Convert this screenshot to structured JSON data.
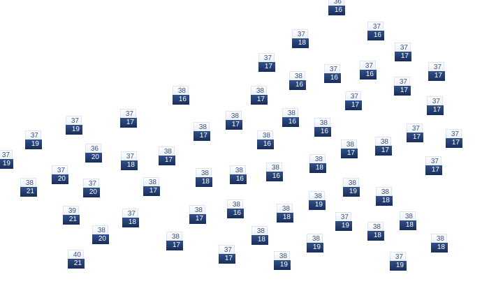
{
  "colors": {
    "label_top_bg": "#f3f6fb",
    "label_top_text": "#3b5282",
    "label_bottom_bg": "#24396a",
    "label_bottom_text": "#ffffff"
  },
  "markers": [
    {
      "high": "36",
      "low": "16"
    },
    {
      "high": "37",
      "low": "18"
    },
    {
      "high": "37",
      "low": "16"
    },
    {
      "high": "37",
      "low": "17"
    },
    {
      "high": "37",
      "low": "17"
    },
    {
      "high": "38",
      "low": "16"
    },
    {
      "high": "37",
      "low": "16"
    },
    {
      "high": "37",
      "low": "16"
    },
    {
      "high": "37",
      "low": "17"
    },
    {
      "high": "37",
      "low": "17"
    },
    {
      "high": "37",
      "low": "17"
    },
    {
      "high": "37",
      "low": "17"
    },
    {
      "high": "38",
      "low": "16"
    },
    {
      "high": "38",
      "low": "17"
    },
    {
      "high": "38",
      "low": "17"
    },
    {
      "high": "38",
      "low": "16"
    },
    {
      "high": "38",
      "low": "16"
    },
    {
      "high": "38",
      "low": "17"
    },
    {
      "high": "38",
      "low": "16"
    },
    {
      "high": "37",
      "low": "17"
    },
    {
      "high": "37",
      "low": "17"
    },
    {
      "high": "38",
      "low": "17"
    },
    {
      "high": "37",
      "low": "17"
    },
    {
      "high": "37",
      "low": "19"
    },
    {
      "high": "37",
      "low": "19"
    },
    {
      "high": "37",
      "low": "19"
    },
    {
      "high": "36",
      "low": "20"
    },
    {
      "high": "37",
      "low": "18"
    },
    {
      "high": "38",
      "low": "17"
    },
    {
      "high": "37",
      "low": "20"
    },
    {
      "high": "38",
      "low": "21"
    },
    {
      "high": "37",
      "low": "20"
    },
    {
      "high": "38",
      "low": "17"
    },
    {
      "high": "39",
      "low": "21"
    },
    {
      "high": "37",
      "low": "18"
    },
    {
      "high": "38",
      "low": "20"
    },
    {
      "high": "38",
      "low": "17"
    },
    {
      "high": "40",
      "low": "21"
    },
    {
      "high": "38",
      "low": "18"
    },
    {
      "high": "38",
      "low": "16"
    },
    {
      "high": "38",
      "low": "16"
    },
    {
      "high": "38",
      "low": "18"
    },
    {
      "high": "38",
      "low": "19"
    },
    {
      "high": "38",
      "low": "17"
    },
    {
      "high": "38",
      "low": "16"
    },
    {
      "high": "38",
      "low": "18"
    },
    {
      "high": "38",
      "low": "18"
    },
    {
      "high": "38",
      "low": "19"
    },
    {
      "high": "37",
      "low": "17"
    },
    {
      "high": "38",
      "low": "19"
    },
    {
      "high": "38",
      "low": "17"
    },
    {
      "high": "37",
      "low": "17"
    },
    {
      "high": "38",
      "low": "19"
    },
    {
      "high": "38",
      "low": "18"
    },
    {
      "high": "37",
      "low": "19"
    },
    {
      "high": "38",
      "low": "18"
    },
    {
      "high": "38",
      "low": "18"
    },
    {
      "high": "38",
      "low": "18"
    },
    {
      "high": "37",
      "low": "19"
    }
  ]
}
